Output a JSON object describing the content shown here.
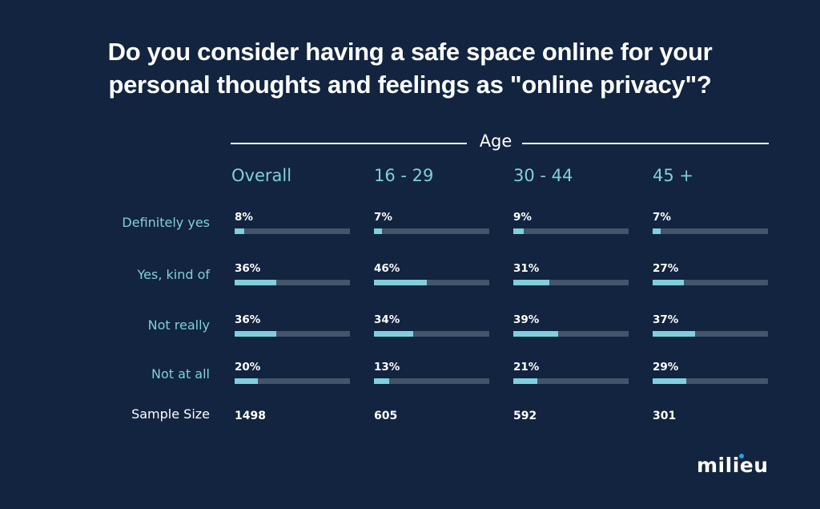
{
  "title_line1": "Do you consider having a safe space online for your",
  "title_line2": "personal thoughts and feelings as \"online privacy\"?",
  "group_header": "Age",
  "brand": "milieu",
  "colors": {
    "background": "#12243f",
    "accent": "#7fd0dc",
    "track": "#44546a",
    "logo_dot": "#1aa7e6"
  },
  "chart_data": {
    "type": "bar",
    "title": "Do you consider having a safe space online for your personal thoughts and feelings as \"online privacy\"?",
    "xlabel": "Age",
    "unit": "%",
    "ylim": [
      0,
      100
    ],
    "categories": [
      "Definitely yes",
      "Yes, kind of",
      "Not really",
      "Not at all"
    ],
    "series": [
      {
        "name": "Overall",
        "values": [
          8,
          36,
          36,
          20
        ],
        "labels": [
          "8%",
          "36%",
          "36%",
          "20%"
        ],
        "sample_size": "1498"
      },
      {
        "name": "16 - 29",
        "values": [
          7,
          46,
          34,
          13
        ],
        "labels": [
          "7%",
          "46%",
          "34%",
          "13%"
        ],
        "sample_size": "605"
      },
      {
        "name": "30 - 44",
        "values": [
          9,
          31,
          39,
          21
        ],
        "labels": [
          "9%",
          "31%",
          "39%",
          "21%"
        ],
        "sample_size": "592"
      },
      {
        "name": "45 +",
        "values": [
          7,
          27,
          37,
          29
        ],
        "labels": [
          "7%",
          "27%",
          "37%",
          "29%"
        ],
        "sample_size": "301"
      }
    ],
    "sample_size_label": "Sample Size"
  }
}
